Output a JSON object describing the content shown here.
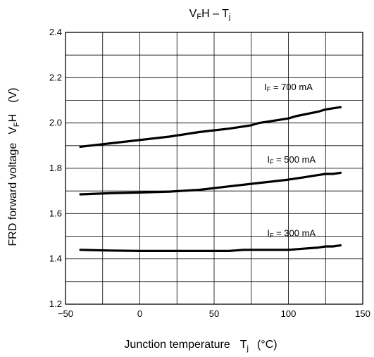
{
  "chart_data": {
    "type": "line",
    "title": "VFH – Tj",
    "title_parts": {
      "main": "V",
      "sub1": "F",
      "mid": "H – T",
      "sub2": "j"
    },
    "xlabel": "Junction temperature",
    "xlabel_symbol": {
      "main": "T",
      "sub": "j"
    },
    "xlabel_unit": "(°C)",
    "ylabel": "FRD forward voltage",
    "ylabel_symbol": {
      "main": "V",
      "sub": "F",
      "suffix": "H"
    },
    "ylabel_unit": "(V)",
    "xlim": [
      -50,
      150
    ],
    "ylim": [
      1.2,
      2.4
    ],
    "x_ticks": [
      "−50",
      "0",
      "50",
      "100",
      "150"
    ],
    "x_tick_values": [
      -50,
      0,
      50,
      100,
      150
    ],
    "y_ticks": [
      "1.2",
      "1.4",
      "1.6",
      "1.8",
      "2.0",
      "2.2",
      "2.4"
    ],
    "y_tick_values": [
      1.2,
      1.4,
      1.6,
      1.8,
      2.0,
      2.2,
      2.4
    ],
    "x_grid_values": [
      -50,
      -25,
      0,
      25,
      50,
      75,
      100,
      125,
      150
    ],
    "y_grid_values": [
      1.2,
      1.3,
      1.4,
      1.5,
      1.6,
      1.7,
      1.8,
      1.9,
      2.0,
      2.1,
      2.2,
      2.3,
      2.4
    ],
    "grid": true,
    "series": [
      {
        "name": "IF = 700 mA",
        "label_parts": {
          "main": "I",
          "sub": "F",
          "rest": " = 700 mA"
        },
        "x": [
          -40,
          -20,
          0,
          20,
          40,
          60,
          75,
          80,
          100,
          105,
          120,
          125,
          130,
          135
        ],
        "y": [
          1.895,
          1.91,
          1.925,
          1.94,
          1.96,
          1.975,
          1.99,
          2.0,
          2.02,
          2.03,
          2.05,
          2.06,
          2.065,
          2.07
        ],
        "label_at": [
          100,
          2.145
        ]
      },
      {
        "name": "IF = 500 mA",
        "label_parts": {
          "main": "I",
          "sub": "F",
          "rest": " = 500 mA"
        },
        "x": [
          -40,
          -20,
          0,
          20,
          40,
          60,
          80,
          100,
          110,
          120,
          125,
          130,
          135
        ],
        "y": [
          1.685,
          1.69,
          1.693,
          1.697,
          1.705,
          1.72,
          1.735,
          1.75,
          1.76,
          1.77,
          1.775,
          1.775,
          1.78
        ],
        "label_at": [
          102,
          1.825
        ]
      },
      {
        "name": "IF = 300 mA",
        "label_parts": {
          "main": "I",
          "sub": "F",
          "rest": " = 300 mA"
        },
        "x": [
          -40,
          -20,
          0,
          20,
          40,
          60,
          70,
          80,
          100,
          110,
          120,
          125,
          130,
          135
        ],
        "y": [
          1.44,
          1.437,
          1.435,
          1.435,
          1.435,
          1.435,
          1.44,
          1.44,
          1.44,
          1.445,
          1.45,
          1.455,
          1.455,
          1.46
        ],
        "label_at": [
          102,
          1.5
        ]
      }
    ]
  }
}
